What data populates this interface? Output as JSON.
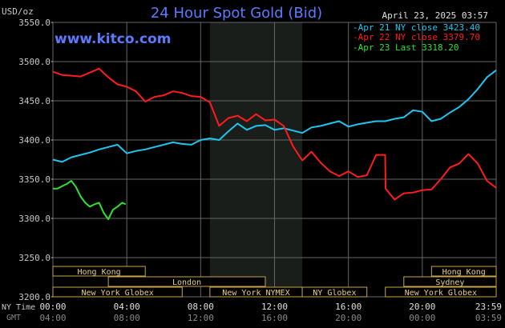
{
  "header": {
    "title": "24 Hour Spot Gold (Bid)",
    "unit": "USD/oz",
    "timestamp": "April 23, 2025 03:57",
    "watermark": "www.kitco.com"
  },
  "axes": {
    "ny_label": "NY Time",
    "gmt_label": "GMT",
    "ny_ticks": [
      "00:00",
      "04:00",
      "08:00",
      "12:00",
      "16:00",
      "20:00",
      "23:59"
    ],
    "gmt_ticks": [
      "04:00",
      "08:00",
      "12:00",
      "16:00",
      "20:00",
      "00:00",
      "03:59"
    ]
  },
  "sessions": [
    {
      "label": "Hong Kong",
      "start": 0.0,
      "end": 5.0,
      "row": 1
    },
    {
      "label": "London",
      "start": 3.0,
      "end": 11.5,
      "row": 2
    },
    {
      "label": "New York Globex",
      "start": 0.0,
      "end": 7.0,
      "row": 3
    },
    {
      "label": "New York NYMEX",
      "start": 8.5,
      "end": 13.5,
      "row": 3
    },
    {
      "label": "NY Globex",
      "start": 13.5,
      "end": 17.0,
      "row": 3
    },
    {
      "label": "Hong Kong",
      "start": 20.5,
      "end": 24.0,
      "row": 1
    },
    {
      "label": "Sydney",
      "start": 19.0,
      "end": 24.0,
      "row": 2
    },
    {
      "label": "New York Globex",
      "start": 18.0,
      "end": 24.0,
      "row": 3
    }
  ],
  "colors": {
    "background": "#000000",
    "grid": "#666666",
    "title": "#5b7bff",
    "text": "#c8c8c8",
    "shade": "#1a1e1a",
    "session_border": "#c9a548",
    "session_text": "#e8d08a",
    "cyan": "#1ec6f0",
    "red": "#ff1c1c",
    "green": "#2de22d"
  },
  "chart_data": {
    "type": "line",
    "title": "24 Hour Spot Gold (Bid)",
    "ylabel": "USD/oz",
    "ylim": [
      3200,
      3550
    ],
    "xlim": [
      0,
      24
    ],
    "x_unit": "hours (NY time)",
    "y_ticks": [
      3200,
      3250,
      3300,
      3350,
      3400,
      3450,
      3500,
      3550
    ],
    "y_tick_labels": [
      "3200.0",
      "3250.0",
      "3300.0",
      "3350.0",
      "3400.0",
      "3450.0",
      "3500.0",
      "3550.0"
    ],
    "shaded_region": [
      8.5,
      13.5
    ],
    "grid": true,
    "legend": "top-right",
    "series": [
      {
        "name": "Apr 21 NY close 3423.40",
        "color": "cyan",
        "x": [
          0,
          0.5,
          1,
          1.5,
          2,
          2.5,
          3,
          3.5,
          4,
          4.5,
          5,
          5.5,
          6,
          6.5,
          7,
          7.5,
          8,
          8.5,
          9,
          9.5,
          10,
          10.5,
          11,
          11.5,
          12,
          12.5,
          13,
          13.5,
          14,
          14.5,
          15,
          15.5,
          16,
          16.5,
          17,
          17.5,
          18,
          18.5,
          19,
          19.5,
          20,
          20.5,
          21,
          21.5,
          22,
          22.5,
          23,
          23.5,
          24
        ],
        "values": [
          3375,
          3372,
          3378,
          3381,
          3384,
          3388,
          3391,
          3394,
          3383,
          3386,
          3388,
          3391,
          3394,
          3397,
          3395,
          3394,
          3400,
          3402,
          3400,
          3411,
          3421,
          3413,
          3418,
          3419,
          3413,
          3415,
          3412,
          3409,
          3416,
          3418,
          3421,
          3424,
          3417,
          3420,
          3422,
          3424,
          3424,
          3427,
          3429,
          3438,
          3436,
          3424,
          3427,
          3435,
          3442,
          3452,
          3465,
          3480,
          3489
        ]
      },
      {
        "name": "Apr 22 NY close 3379.70",
        "color": "red",
        "x": [
          0,
          0.5,
          1,
          1.5,
          2,
          2.5,
          3,
          3.5,
          4,
          4.5,
          5,
          5.5,
          6,
          6.5,
          7,
          7.5,
          8,
          8.5,
          9,
          9.5,
          10,
          10.5,
          11,
          11.5,
          12,
          12.5,
          13,
          13.5,
          14,
          14.5,
          15,
          15.5,
          16,
          16.5,
          17,
          17.5,
          17.99,
          18.01,
          18.5,
          19,
          19.5,
          20,
          20.5,
          21,
          21.5,
          22,
          22.5,
          23,
          23.5,
          24
        ],
        "values": [
          3487,
          3483,
          3482,
          3481,
          3486,
          3491,
          3480,
          3471,
          3468,
          3462,
          3449,
          3455,
          3457,
          3462,
          3460,
          3456,
          3455,
          3448,
          3418,
          3428,
          3431,
          3424,
          3433,
          3425,
          3426,
          3418,
          3392,
          3374,
          3385,
          3371,
          3360,
          3354,
          3360,
          3353,
          3355,
          3381,
          3381,
          3338,
          3324,
          3332,
          3333,
          3336,
          3337,
          3350,
          3365,
          3370,
          3382,
          3370,
          3348,
          3339
        ]
      },
      {
        "name": "Apr 23 Last 3318.20",
        "color": "green",
        "x": [
          0,
          0.25,
          0.5,
          0.75,
          1,
          1.25,
          1.5,
          1.75,
          2,
          2.25,
          2.5,
          2.75,
          3,
          3.25,
          3.5,
          3.75,
          3.94
        ],
        "values": [
          3338,
          3338,
          3341,
          3344,
          3348,
          3340,
          3328,
          3320,
          3315,
          3318,
          3320,
          3307,
          3299,
          3311,
          3315,
          3320,
          3318
        ]
      }
    ]
  }
}
